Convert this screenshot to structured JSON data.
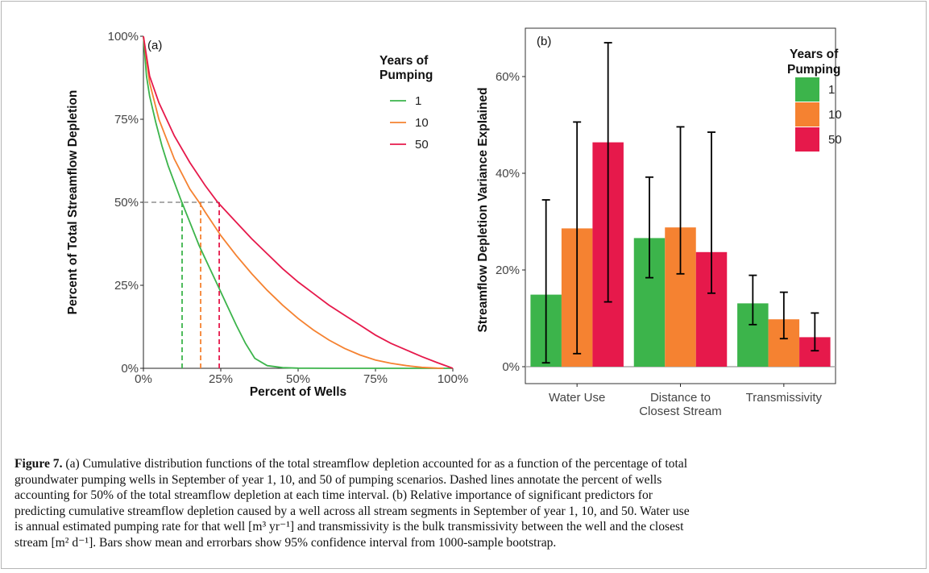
{
  "chart_data": [
    {
      "type": "line",
      "panel_label": "(a)",
      "xlabel": "Percent of Wells",
      "ylabel": "Percent of Total Streamflow Depletion",
      "xlim": [
        0,
        100
      ],
      "ylim": [
        0,
        100
      ],
      "x_ticks": [
        "0%",
        "25%",
        "50%",
        "75%",
        "100%"
      ],
      "y_ticks": [
        "0%",
        "25%",
        "50%",
        "75%",
        "100%"
      ],
      "legend_title": "Years of Pumping",
      "legend_position": "top-right",
      "grid": false,
      "series": [
        {
          "name": "1",
          "color": "#3cb44b",
          "x": [
            0,
            1,
            2,
            4,
            6,
            8,
            10,
            12,
            15,
            18,
            21,
            24,
            27,
            30,
            33,
            36,
            40,
            45,
            50,
            60,
            75,
            100
          ],
          "y": [
            100,
            88,
            82,
            74,
            67,
            61,
            56,
            51,
            44,
            37,
            31,
            25,
            19,
            13,
            7.5,
            3,
            0.8,
            0.2,
            0.05,
            0,
            0,
            0
          ]
        },
        {
          "name": "10",
          "color": "#f58231",
          "x": [
            0,
            2,
            5,
            10,
            15,
            18,
            20,
            25,
            30,
            35,
            40,
            45,
            50,
            55,
            60,
            65,
            70,
            75,
            80,
            85,
            90,
            95,
            97
          ],
          "y": [
            100,
            86,
            75,
            63,
            54,
            50,
            47,
            40,
            34,
            28.5,
            23.5,
            19,
            15,
            11.5,
            8.5,
            6,
            4,
            2.5,
            1.5,
            0.8,
            0.3,
            0.05,
            0
          ]
        },
        {
          "name": "50",
          "color": "#e6194b",
          "x": [
            0,
            2,
            5,
            10,
            15,
            20,
            24,
            30,
            35,
            40,
            45,
            50,
            55,
            60,
            65,
            70,
            75,
            80,
            85,
            90,
            95,
            100
          ],
          "y": [
            100,
            88,
            80,
            70,
            62,
            55,
            50,
            44,
            39,
            34.5,
            30,
            26,
            22.5,
            19,
            16,
            13,
            10,
            7.5,
            5.5,
            3.5,
            1.7,
            0
          ]
        }
      ],
      "annotations": [
        {
          "series": "1",
          "x_at_50": 12.5
        },
        {
          "series": "10",
          "x_at_50": 18.5
        },
        {
          "series": "50",
          "x_at_50": 24.5
        }
      ]
    },
    {
      "type": "bar",
      "panel_label": "(b)",
      "xlabel": "",
      "ylabel": "Streamflow Depletion Variance Explained",
      "ylim": [
        -3.5,
        70
      ],
      "y_ticks": [
        0,
        20,
        40,
        60
      ],
      "y_tick_labels": [
        "0%",
        "20%",
        "40%",
        "60%"
      ],
      "categories": [
        "Water Use",
        "Distance to\nClosest Stream",
        "Transmissivity"
      ],
      "legend_title": "Years of Pumping",
      "legend_position": "top-right",
      "grid": false,
      "series": [
        {
          "name": "1",
          "color": "#3cb44b",
          "values": [
            14.9,
            26.6,
            13.1
          ],
          "ci_low": [
            0.8,
            18.4,
            8.7
          ],
          "ci_high": [
            34.5,
            39.2,
            18.9
          ]
        },
        {
          "name": "10",
          "color": "#f58231",
          "values": [
            28.6,
            28.8,
            9.8
          ],
          "ci_low": [
            2.7,
            19.2,
            5.8
          ],
          "ci_high": [
            50.6,
            49.6,
            15.4
          ]
        },
        {
          "name": "50",
          "color": "#e6194b",
          "values": [
            46.4,
            23.7,
            6.1
          ],
          "ci_low": [
            13.4,
            15.2,
            3.3
          ],
          "ci_high": [
            67.0,
            48.5,
            11.1
          ]
        }
      ]
    }
  ],
  "caption": {
    "label": "Figure 7.",
    "lines": [
      " (a) Cumulative distribution functions of the total streamflow depletion accounted for as a function of the percentage of total",
      "groundwater pumping wells in September of year 1, 10, and 50 of pumping scenarios. Dashed lines annotate the percent of wells",
      "accounting for 50% of the total streamflow depletion at each time interval. (b) Relative importance of significant predictors for",
      "predicting cumulative streamflow depletion caused by a well across all stream segments in September of year 1, 10, and 50. Water use",
      "is annual estimated pumping rate for that well [m³ yr⁻¹] and transmissivity is the bulk transmissivity between the well and the closest",
      "stream [m² d⁻¹]. Bars show mean and errorbars show 95% confidence interval from 1000-sample bootstrap."
    ]
  }
}
